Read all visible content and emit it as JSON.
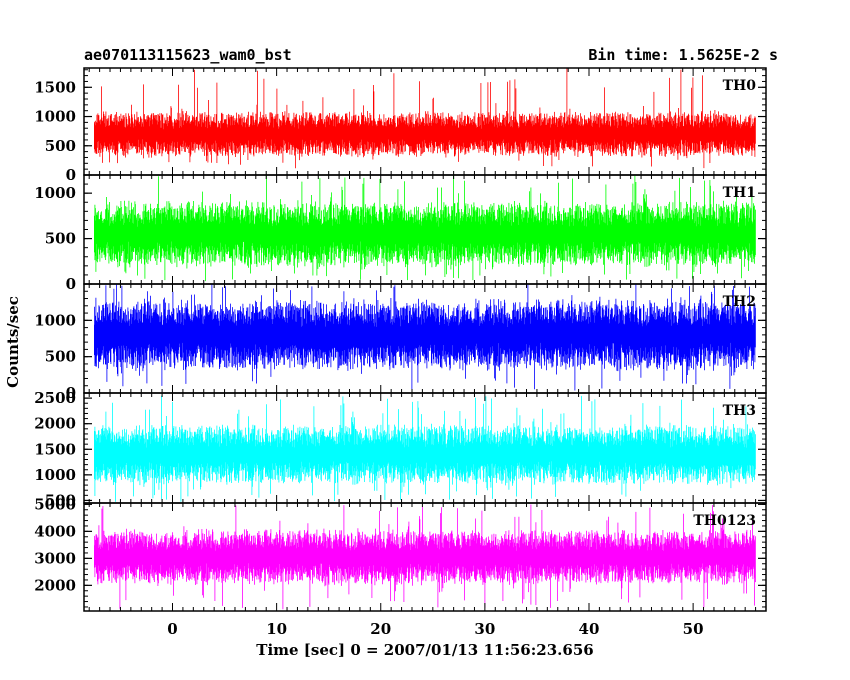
{
  "header": {
    "left_title": "ae070113115623_wam0_bst",
    "right_title": "Bin time: 1.5625E-2 s"
  },
  "chart_data": {
    "type": "line",
    "xlabel": "Time [sec] 0 = 2007/01/13 11:56:23.656",
    "ylabel": "Counts/sec",
    "xlim": [
      -8.5,
      57
    ],
    "data_x_range": [
      -7.5,
      56
    ],
    "bin_time": 0.015625,
    "x_ticks": [
      0,
      10,
      20,
      30,
      40,
      50
    ],
    "grid": false,
    "panels": [
      {
        "name": "TH0",
        "color": "#ff0000",
        "ylim": [
          0,
          1830
        ],
        "y_ticks": [
          0,
          500,
          1000,
          1500
        ],
        "typical_range": [
          380,
          1100
        ],
        "low_extreme": 110,
        "high_extreme": 1850,
        "mean": 700
      },
      {
        "name": "TH1",
        "color": "#00ff00",
        "ylim": [
          0,
          1200
        ],
        "y_ticks": [
          0,
          500,
          1000
        ],
        "typical_range": [
          230,
          900
        ],
        "low_extreme": 30,
        "high_extreme": 1200,
        "mean": 550
      },
      {
        "name": "TH2",
        "color": "#0000ff",
        "ylim": [
          0,
          1500
        ],
        "y_ticks": [
          0,
          500,
          1000
        ],
        "typical_range": [
          350,
          1250
        ],
        "low_extreme": 30,
        "high_extreme": 1500,
        "mean": 800
      },
      {
        "name": "TH3",
        "color": "#00ffff",
        "ylim": [
          450,
          2600
        ],
        "y_ticks": [
          500,
          1000,
          1500,
          2000,
          2500
        ],
        "typical_range": [
          850,
          1950
        ],
        "low_extreme": 450,
        "high_extreme": 2550,
        "mean": 1400
      },
      {
        "name": "TH0123",
        "color": "#ff00ff",
        "ylim": [
          1050,
          5050
        ],
        "y_ticks": [
          2000,
          3000,
          4000,
          5000
        ],
        "typical_range": [
          2100,
          4000
        ],
        "low_extreme": 1100,
        "high_extreme": 5000,
        "mean": 3050
      }
    ]
  }
}
